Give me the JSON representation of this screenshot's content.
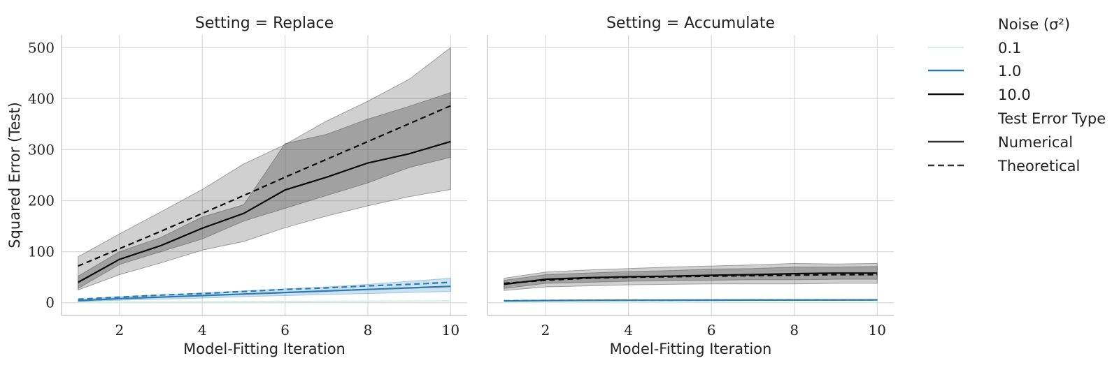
{
  "chart_data": [
    {
      "type": "line",
      "title": "Setting = Replace",
      "xlabel": "Model-Fitting Iteration",
      "ylabel": "Squared Error (Test)",
      "xlim": [
        0.6,
        10.4
      ],
      "ylim": [
        -25,
        525
      ],
      "xticks": [
        2,
        4,
        6,
        8,
        10
      ],
      "yticks": [
        0,
        100,
        200,
        300,
        400,
        500
      ],
      "grid": true,
      "x": [
        1,
        2,
        3,
        4,
        5,
        6,
        7,
        8,
        9,
        10
      ],
      "series": [
        {
          "noise": "10.0",
          "error_type": "Numerical",
          "values": [
            40,
            85,
            112,
            146,
            175,
            221,
            246,
            274,
            292,
            316
          ],
          "ci_inner": [
            [
              28,
              52
            ],
            [
              75,
              100
            ],
            [
              100,
              128
            ],
            [
              125,
              168
            ],
            [
              160,
              192
            ],
            [
              185,
              312
            ],
            [
              210,
              330
            ],
            [
              235,
              360
            ],
            [
              265,
              385
            ],
            [
              285,
              412
            ]
          ]
        },
        {
          "noise": "10.0",
          "error_type": "Theoretical",
          "values": [
            72,
            106,
            140,
            175,
            210,
            246,
            281,
            316,
            351,
            386
          ],
          "ci_outer": [
            [
              25,
              90
            ],
            [
              55,
              135
            ],
            [
              78,
              178
            ],
            [
              103,
              222
            ],
            [
              120,
              272
            ],
            [
              147,
              310
            ],
            [
              170,
              356
            ],
            [
              190,
              395
            ],
            [
              208,
              438
            ],
            [
              222,
              500
            ]
          ]
        },
        {
          "noise": "1.0",
          "error_type": "Numerical",
          "values": [
            4,
            8,
            11,
            14,
            17,
            20,
            23,
            26,
            29,
            32
          ],
          "ci": [
            [
              2,
              6
            ],
            [
              5,
              12
            ],
            [
              7,
              15
            ],
            [
              9,
              19
            ],
            [
              12,
              23
            ],
            [
              14,
              27
            ],
            [
              16,
              31
            ],
            [
              18,
              36
            ],
            [
              20,
              42
            ],
            [
              22,
              48
            ]
          ]
        },
        {
          "noise": "1.0",
          "error_type": "Theoretical",
          "values": [
            7,
            11,
            15,
            18,
            22,
            26,
            29,
            33,
            36,
            40
          ]
        },
        {
          "noise": "0.1",
          "error_type": "Numerical",
          "values": [
            0.4,
            0.8,
            1.1,
            1.5,
            1.8,
            2.2,
            2.5,
            2.9,
            3.2,
            3.6
          ]
        },
        {
          "noise": "0.1",
          "error_type": "Theoretical",
          "values": [
            0.7,
            1.1,
            1.4,
            1.8,
            2.2,
            2.5,
            2.9,
            3.3,
            3.6,
            4.0
          ]
        }
      ]
    },
    {
      "type": "line",
      "title": "Setting = Accumulate",
      "xlabel": "Model-Fitting Iteration",
      "ylabel": "",
      "xlim": [
        0.6,
        10.4
      ],
      "ylim": [
        -25,
        525
      ],
      "xticks": [
        2,
        4,
        6,
        8,
        10
      ],
      "yticks": [
        0,
        100,
        200,
        300,
        400,
        500
      ],
      "grid": true,
      "x": [
        1,
        2,
        3,
        4,
        5,
        6,
        7,
        8,
        9,
        10
      ],
      "series": [
        {
          "noise": "10.0",
          "error_type": "Numerical",
          "values": [
            36,
            46,
            49,
            51,
            52,
            54,
            55,
            57,
            58,
            58
          ],
          "ci_inner": [
            [
              28,
              44
            ],
            [
              38,
              55
            ],
            [
              40,
              58
            ],
            [
              42,
              61
            ],
            [
              43,
              63
            ],
            [
              44,
              66
            ],
            [
              45,
              67
            ],
            [
              45,
              70
            ],
            [
              46,
              70
            ],
            [
              46,
              71
            ]
          ]
        },
        {
          "noise": "10.0",
          "error_type": "Theoretical",
          "values": [
            38,
            44,
            48,
            50,
            51,
            52,
            53,
            54,
            55,
            55
          ],
          "ci_outer": [
            [
              24,
              48
            ],
            [
              31,
              60
            ],
            [
              33,
              64
            ],
            [
              35,
              67
            ],
            [
              36,
              70
            ],
            [
              37,
              72
            ],
            [
              37,
              74
            ],
            [
              37,
              77
            ],
            [
              38,
              76
            ],
            [
              38,
              77
            ]
          ]
        },
        {
          "noise": "1.0",
          "error_type": "Numerical",
          "values": [
            3.5,
            4.2,
            4.6,
            4.8,
            5.0,
            5.1,
            5.2,
            5.3,
            5.4,
            5.5
          ],
          "ci": [
            [
              2.5,
              4.5
            ],
            [
              3.2,
              5.2
            ],
            [
              3.6,
              5.6
            ],
            [
              3.8,
              5.8
            ],
            [
              4.0,
              6.0
            ],
            [
              4.1,
              6.1
            ],
            [
              4.2,
              6.2
            ],
            [
              4.3,
              6.3
            ],
            [
              4.4,
              6.4
            ],
            [
              4.5,
              6.5
            ]
          ]
        },
        {
          "noise": "1.0",
          "error_type": "Theoretical",
          "values": [
            3.8,
            4.4,
            4.7,
            4.9,
            5.0,
            5.1,
            5.2,
            5.3,
            5.4,
            5.4
          ]
        },
        {
          "noise": "0.1",
          "error_type": "Numerical",
          "values": [
            0.4,
            0.45,
            0.48,
            0.5,
            0.51,
            0.52,
            0.53,
            0.54,
            0.55,
            0.55
          ]
        },
        {
          "noise": "0.1",
          "error_type": "Theoretical",
          "values": [
            0.4,
            0.45,
            0.48,
            0.5,
            0.51,
            0.52,
            0.53,
            0.54,
            0.55,
            0.55
          ]
        }
      ]
    }
  ],
  "legend": {
    "placement": "right",
    "noise_title": "Noise (σ²)",
    "noise_entries": [
      {
        "label": "0.1",
        "color": "#d6efe6"
      },
      {
        "label": "1.0",
        "color": "#2a7ab0"
      },
      {
        "label": "10.0",
        "color": "#0a0a0a"
      }
    ],
    "type_title": "Test Error Type",
    "type_entries": [
      {
        "label": "Numerical",
        "style": "solid"
      },
      {
        "label": "Theoretical",
        "style": "dashed"
      }
    ]
  }
}
